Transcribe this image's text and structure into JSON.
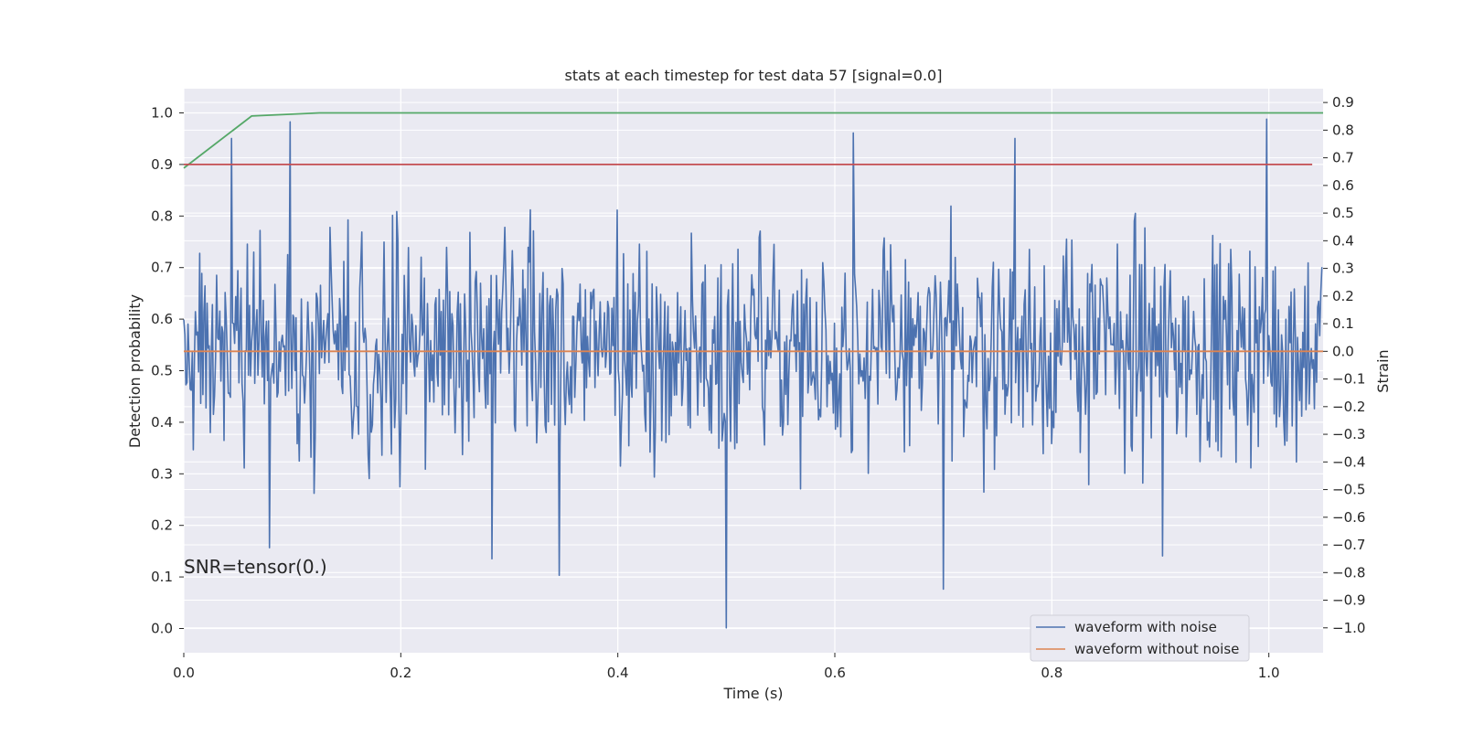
{
  "chart_data": {
    "type": "line",
    "title": "stats at each timestep for test data 57 [signal=0.0]",
    "xlabel": "Time (s)",
    "ylabel_left": "Detection probability",
    "ylabel_right": "Strain",
    "xlim": [
      0.0,
      1.05
    ],
    "ylim_left": [
      -0.047,
      1.047
    ],
    "ylim_right": [
      -1.09,
      0.95
    ],
    "x_ticks": [
      "0.0",
      "0.2",
      "0.4",
      "0.6",
      "0.8",
      "1.0"
    ],
    "y_ticks_left": [
      "0.0",
      "0.1",
      "0.2",
      "0.3",
      "0.4",
      "0.5",
      "0.6",
      "0.7",
      "0.8",
      "0.9",
      "1.0"
    ],
    "y_ticks_right": [
      "0.9",
      "0.8",
      "0.7",
      "0.6",
      "0.5",
      "0.4",
      "0.3",
      "0.2",
      "0.1",
      "0.0",
      "−0.1",
      "−0.2",
      "−0.3",
      "−0.4",
      "−0.5",
      "−0.6",
      "−0.7",
      "−0.8",
      "−0.9",
      "−1.0"
    ],
    "grid": true,
    "legend_position": "lower-right",
    "annotation": "SNR=tensor(0.)",
    "colors": {
      "background": "#eaeaf2",
      "grid": "#ffffff",
      "noisy": "#4c72b0",
      "clean": "#dd8452",
      "probability": "#55a868",
      "threshold": "#c44e52"
    },
    "series": [
      {
        "name": "waveform with noise",
        "axis": "right",
        "sample_interval": 0.0009766,
        "sample_count": 1075,
        "y_range": [
          -1.0,
          0.85
        ],
        "highlight_points": [
          {
            "x": 0.044,
            "y": 0.77
          },
          {
            "x": 0.098,
            "y": 0.83
          },
          {
            "x": 0.079,
            "y": -0.71
          },
          {
            "x": 0.284,
            "y": -0.75
          },
          {
            "x": 0.346,
            "y": -0.81
          },
          {
            "x": 0.5,
            "y": -1.0
          },
          {
            "x": 0.617,
            "y": 0.79
          },
          {
            "x": 0.7,
            "y": -0.86
          },
          {
            "x": 0.766,
            "y": 0.77
          },
          {
            "x": 0.902,
            "y": -0.74
          },
          {
            "x": 0.998,
            "y": 0.84
          }
        ]
      },
      {
        "name": "waveform without noise",
        "axis": "right",
        "x": [
          0.0,
          1.05
        ],
        "y": [
          0.0,
          0.0
        ]
      },
      {
        "axis": "left",
        "x": [
          0.0,
          0.0625,
          0.125,
          1.05
        ],
        "y": [
          0.893,
          0.994,
          1.0,
          1.0
        ]
      },
      {
        "axis": "left",
        "x": [
          0.0,
          1.04
        ],
        "y": [
          0.9,
          0.9
        ]
      }
    ]
  }
}
